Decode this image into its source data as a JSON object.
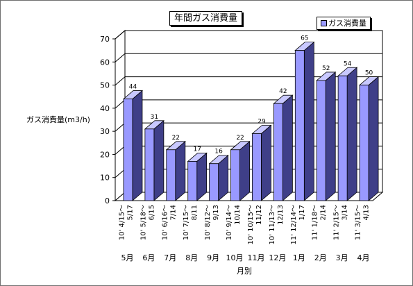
{
  "chart_data": {
    "type": "bar",
    "title": "年間ガス消費量",
    "ylabel": "ガス消費量(m3/h)",
    "xlabel": "月別",
    "legend": {
      "label": "ガス消費量",
      "position": "top-right"
    },
    "categories": [
      "10' 4/15～ 5/17",
      "10' 5/18～ 6/15",
      "10' 6/16～ 7/14",
      "10' 7/15～ 8/11",
      "10' 8/12～ 9/13",
      "10' 9/14～ 10/14",
      "10' 10/15～ 11/12",
      "10' 11/13～ 12/13",
      "11' 12/14～ 1/17",
      "11' 1/18～ 2/14",
      "11' 2/15～ 3/14",
      "11' 3/15～ 4/13"
    ],
    "category_lines": [
      [
        "10' 4/15～",
        "5/17"
      ],
      [
        "10' 5/18～",
        "6/15"
      ],
      [
        "10' 6/16～",
        "7/14"
      ],
      [
        "10' 7/15～",
        "8/11"
      ],
      [
        "10' 8/12～",
        "9/13"
      ],
      [
        "10' 9/14～",
        "10/14"
      ],
      [
        "10' 10/15～",
        "11/12"
      ],
      [
        "10' 11/13～",
        "12/13"
      ],
      [
        "11' 12/14～",
        "1/17"
      ],
      [
        "11' 1/18～",
        "2/14"
      ],
      [
        "11' 2/15～",
        "3/14"
      ],
      [
        "11' 3/15～",
        "4/13"
      ]
    ],
    "months": [
      "5月",
      "6月",
      "7月",
      "8月",
      "9月",
      "10月",
      "11月",
      "12月",
      "1月",
      "2月",
      "3月",
      "4月"
    ],
    "values": [
      44,
      31,
      22,
      17,
      16,
      22,
      29,
      42,
      65,
      52,
      54,
      50
    ],
    "yticks": [
      0,
      10,
      20,
      30,
      40,
      50,
      60,
      70
    ],
    "ylim": [
      0,
      70
    ],
    "grid": true,
    "three_d": true,
    "colors": {
      "bar_front": "#9999ff",
      "bar_side": "#3f3f88",
      "bar_top": "#c8c8ff",
      "outline": "#000000"
    }
  }
}
